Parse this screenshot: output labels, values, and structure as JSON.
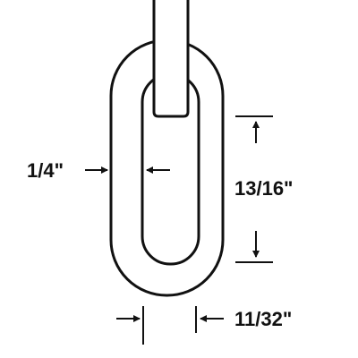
{
  "diagram": {
    "subject": "chain-link",
    "colors": {
      "stroke": "#111111",
      "background": "#ffffff"
    },
    "dimensions": {
      "wire_thickness": "1/4\"",
      "inside_length": "13/16\"",
      "inside_width": "11/32\""
    }
  }
}
